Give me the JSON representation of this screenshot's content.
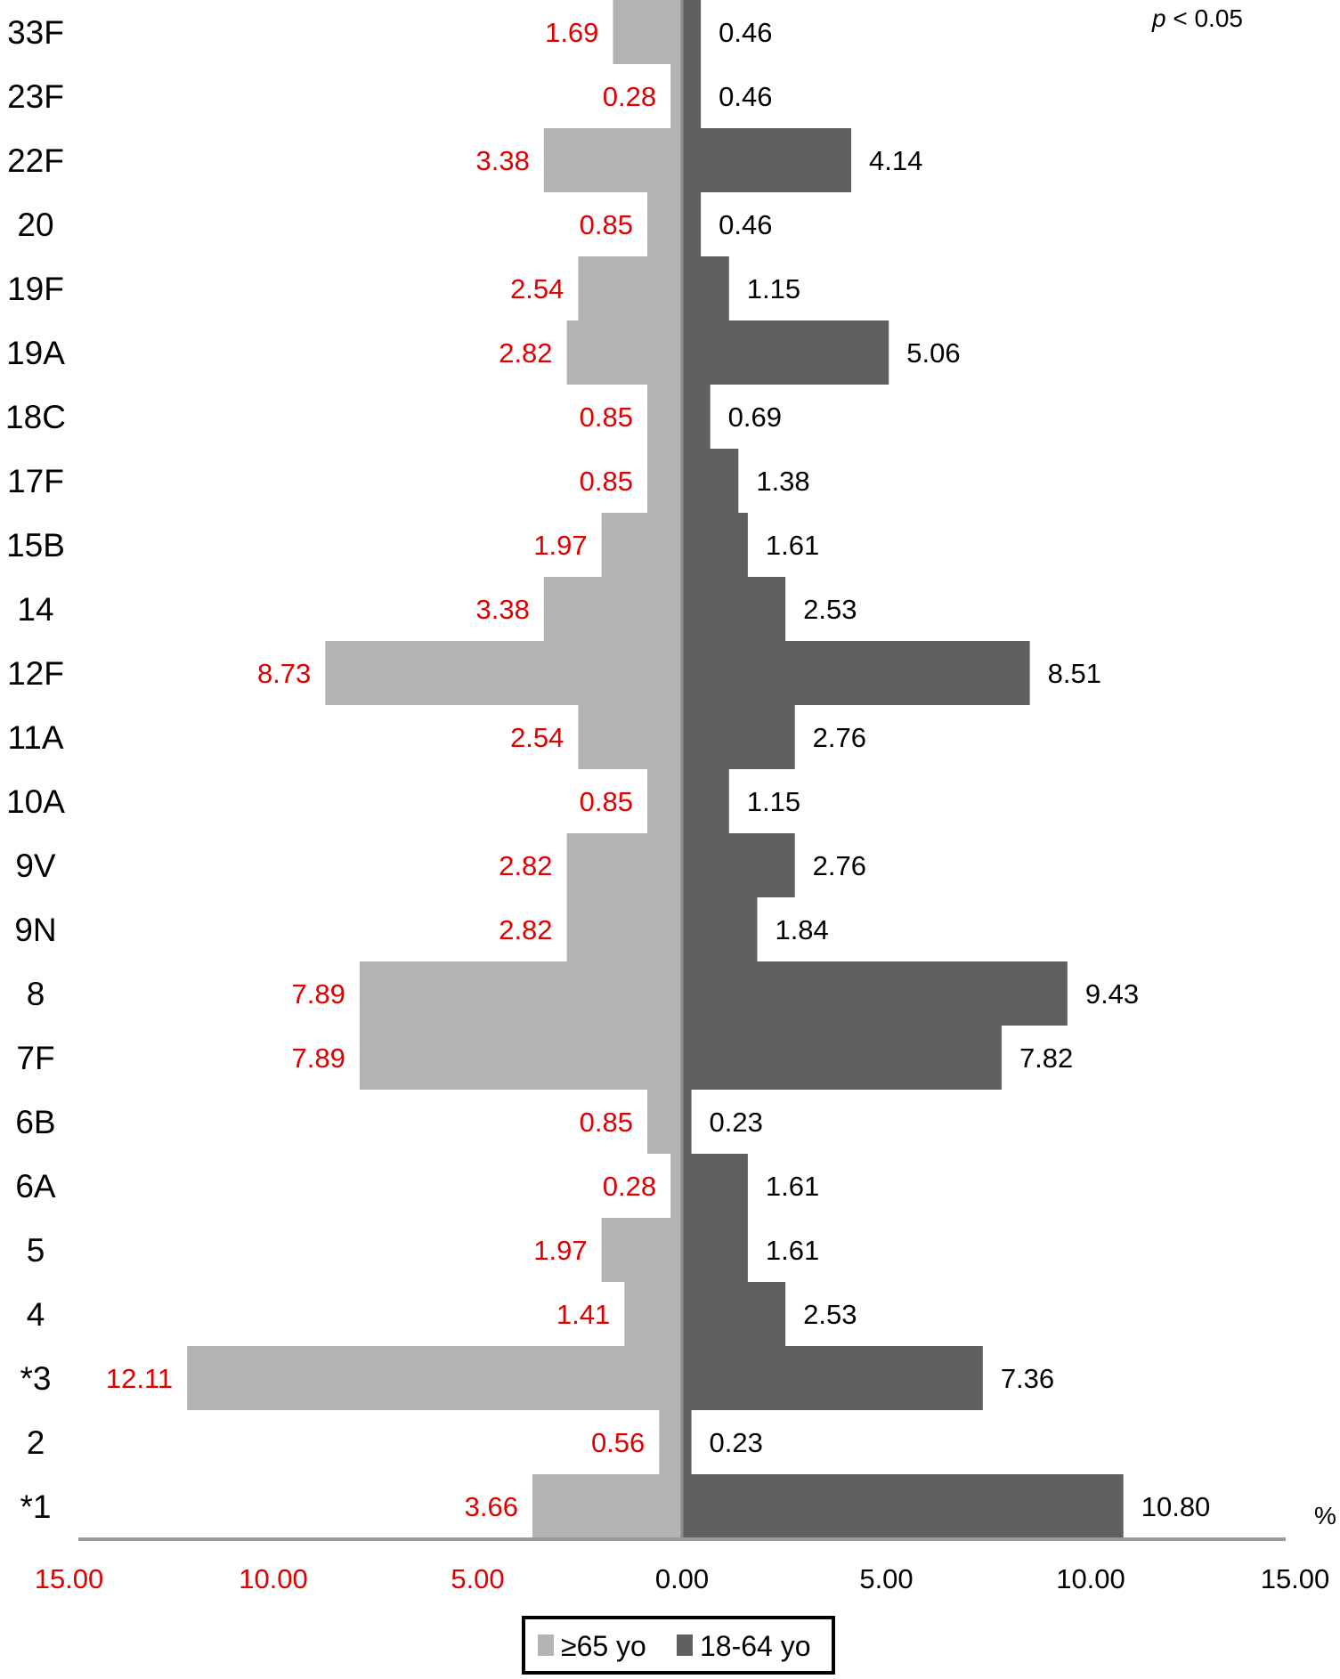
{
  "chart_data": {
    "type": "bar",
    "orientation": "horizontal-diverging",
    "categories": [
      "33F",
      "23F",
      "22F",
      "20",
      "19F",
      "19A",
      "18C",
      "17F",
      "15B",
      "14",
      "12F",
      "11A",
      "10A",
      "9V",
      "9N",
      "8",
      "7F",
      "6B",
      "6A",
      "5",
      "4",
      "*3",
      "2",
      "*1"
    ],
    "series": [
      {
        "name": "≥65 yo",
        "color": "#b3b3b3",
        "label_color": "#e00000",
        "direction": "left",
        "values": [
          1.69,
          0.28,
          3.38,
          0.85,
          2.54,
          2.82,
          0.85,
          0.85,
          1.97,
          3.38,
          8.73,
          2.54,
          0.85,
          2.82,
          2.82,
          7.89,
          7.89,
          0.85,
          0.28,
          1.97,
          1.41,
          12.11,
          0.56,
          3.66
        ]
      },
      {
        "name": "18-64 yo",
        "color": "#606060",
        "label_color": "#000000",
        "direction": "right",
        "values": [
          0.46,
          0.46,
          4.14,
          0.46,
          1.15,
          5.06,
          0.69,
          1.38,
          1.61,
          2.53,
          8.51,
          2.76,
          1.15,
          2.76,
          1.84,
          9.43,
          7.82,
          0.23,
          1.61,
          1.61,
          2.53,
          7.36,
          0.23,
          10.8
        ]
      }
    ],
    "x_ticks": [
      "15.00",
      "10.00",
      "5.00",
      "0.00",
      "5.00",
      "10.00",
      "15.00"
    ],
    "x_tick_colors": [
      "#e00000",
      "#e00000",
      "#e00000",
      "#000000",
      "#000000",
      "#000000",
      "#000000"
    ],
    "xlim": [
      -15,
      15
    ],
    "x_unit": "%",
    "annotation": "p < 0.05",
    "legend": {
      "position": "bottom",
      "items": [
        "≥65 yo",
        "18-64 yo"
      ]
    },
    "grid": false
  }
}
